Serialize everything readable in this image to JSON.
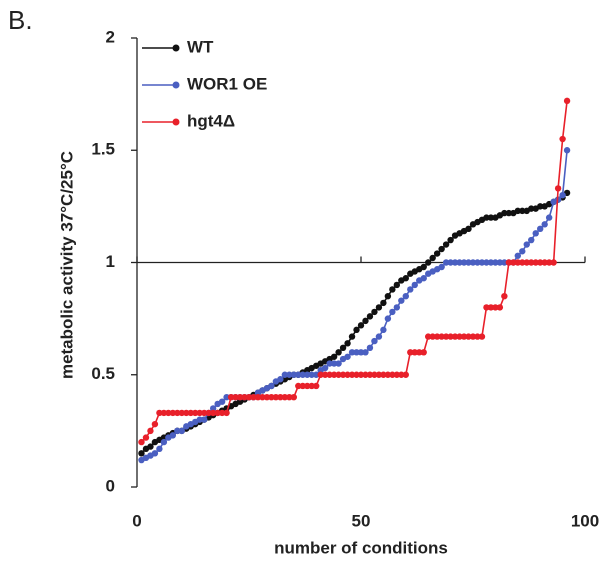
{
  "chart_data": {
    "type": "line",
    "panel_label": "B.",
    "x_label": "number of conditions",
    "y_label": "metabolic activity 37°C/25°C",
    "xlim": [
      0,
      100
    ],
    "xticks": [
      0,
      50,
      100
    ],
    "ylim": [
      0,
      2
    ],
    "yticks": [
      0,
      {
        "value": 0.5,
        "label": "0.5"
      },
      1,
      {
        "value": 1.5,
        "label": "1.5"
      },
      2
    ],
    "x_axis_at": 1,
    "legend": "upper left",
    "x": [
      1,
      2,
      3,
      4,
      5,
      6,
      7,
      8,
      9,
      10,
      11,
      12,
      13,
      14,
      15,
      16,
      17,
      18,
      19,
      20,
      21,
      22,
      23,
      24,
      25,
      26,
      27,
      28,
      29,
      30,
      31,
      32,
      33,
      34,
      35,
      36,
      37,
      38,
      39,
      40,
      41,
      42,
      43,
      44,
      45,
      46,
      47,
      48,
      49,
      50,
      51,
      52,
      53,
      54,
      55,
      56,
      57,
      58,
      59,
      60,
      61,
      62,
      63,
      64,
      65,
      66,
      67,
      68,
      69,
      70,
      71,
      72,
      73,
      74,
      75,
      76,
      77,
      78,
      79,
      80,
      81,
      82,
      83,
      84,
      85,
      86,
      87,
      88,
      89,
      90,
      91,
      92,
      93,
      94,
      95,
      96
    ],
    "series": [
      {
        "name": "WT",
        "color": "#111111",
        "values": [
          0.15,
          0.17,
          0.18,
          0.2,
          0.21,
          0.22,
          0.23,
          0.24,
          0.25,
          0.25,
          0.26,
          0.27,
          0.28,
          0.29,
          0.3,
          0.31,
          0.32,
          0.33,
          0.34,
          0.35,
          0.36,
          0.37,
          0.38,
          0.39,
          0.4,
          0.41,
          0.42,
          0.43,
          0.44,
          0.45,
          0.46,
          0.47,
          0.48,
          0.49,
          0.5,
          0.5,
          0.51,
          0.52,
          0.53,
          0.54,
          0.55,
          0.56,
          0.57,
          0.58,
          0.6,
          0.62,
          0.64,
          0.67,
          0.7,
          0.72,
          0.74,
          0.76,
          0.78,
          0.8,
          0.82,
          0.85,
          0.88,
          0.9,
          0.92,
          0.93,
          0.95,
          0.96,
          0.97,
          0.98,
          1.0,
          1.02,
          1.04,
          1.06,
          1.08,
          1.1,
          1.12,
          1.13,
          1.14,
          1.15,
          1.17,
          1.18,
          1.19,
          1.2,
          1.2,
          1.2,
          1.21,
          1.22,
          1.22,
          1.22,
          1.23,
          1.23,
          1.23,
          1.24,
          1.24,
          1.25,
          1.25,
          1.26,
          1.27,
          1.28,
          1.29,
          1.31
        ]
      },
      {
        "name": "WOR1 OE",
        "color": "#4a5fc1",
        "values": [
          0.12,
          0.13,
          0.14,
          0.15,
          0.17,
          0.2,
          0.22,
          0.23,
          0.25,
          0.25,
          0.27,
          0.28,
          0.29,
          0.3,
          0.3,
          0.33,
          0.35,
          0.37,
          0.38,
          0.4,
          0.4,
          0.4,
          0.4,
          0.4,
          0.4,
          0.4,
          0.42,
          0.43,
          0.44,
          0.45,
          0.47,
          0.48,
          0.5,
          0.5,
          0.5,
          0.5,
          0.5,
          0.5,
          0.5,
          0.5,
          0.52,
          0.53,
          0.55,
          0.55,
          0.55,
          0.57,
          0.58,
          0.6,
          0.6,
          0.6,
          0.6,
          0.62,
          0.65,
          0.67,
          0.7,
          0.75,
          0.78,
          0.8,
          0.83,
          0.85,
          0.88,
          0.9,
          0.92,
          0.93,
          0.95,
          0.96,
          0.97,
          0.98,
          1.0,
          1.0,
          1,
          1,
          1,
          1,
          1,
          1,
          1,
          1,
          1,
          1,
          1,
          1,
          1,
          1,
          1.03,
          1.05,
          1.08,
          1.1,
          1.13,
          1.15,
          1.17,
          1.2,
          1.27,
          1.28,
          1.3,
          1.5
        ]
      },
      {
        "name": "hgt4Δ",
        "color": "#e8202a",
        "values": [
          0.2,
          0.22,
          0.25,
          0.28,
          0.33,
          0.33,
          0.33,
          0.33,
          0.33,
          0.33,
          0.33,
          0.33,
          0.33,
          0.33,
          0.33,
          0.33,
          0.33,
          0.33,
          0.33,
          0.33,
          0.4,
          0.4,
          0.4,
          0.4,
          0.4,
          0.4,
          0.4,
          0.4,
          0.4,
          0.4,
          0.4,
          0.4,
          0.4,
          0.4,
          0.4,
          0.45,
          0.45,
          0.45,
          0.45,
          0.45,
          0.5,
          0.5,
          0.5,
          0.5,
          0.5,
          0.5,
          0.5,
          0.5,
          0.5,
          0.5,
          0.5,
          0.5,
          0.5,
          0.5,
          0.5,
          0.5,
          0.5,
          0.5,
          0.5,
          0.5,
          0.6,
          0.6,
          0.6,
          0.6,
          0.67,
          0.67,
          0.67,
          0.67,
          0.67,
          0.67,
          0.67,
          0.67,
          0.67,
          0.67,
          0.67,
          0.67,
          0.67,
          0.8,
          0.8,
          0.8,
          0.8,
          0.85,
          1,
          1,
          1,
          1,
          1,
          1,
          1,
          1,
          1,
          1,
          1,
          1.33,
          1.55,
          1.72
        ]
      }
    ]
  }
}
